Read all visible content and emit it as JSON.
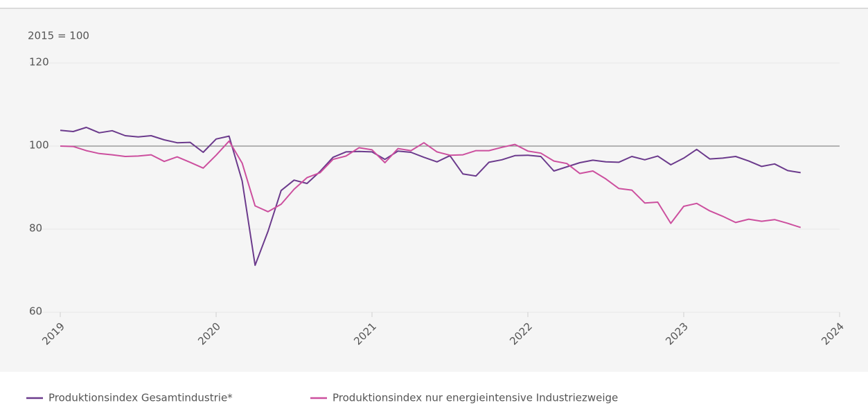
{
  "chart_data": {
    "type": "line",
    "unit_label": "2015 = 100",
    "x": [
      2019,
      2019.083,
      2019.167,
      2019.25,
      2019.333,
      2019.417,
      2019.5,
      2019.583,
      2019.667,
      2019.75,
      2019.833,
      2019.917,
      2020,
      2020.083,
      2020.167,
      2020.25,
      2020.333,
      2020.417,
      2020.5,
      2020.583,
      2020.667,
      2020.75,
      2020.833,
      2020.917,
      2021,
      2021.083,
      2021.167,
      2021.25,
      2021.333,
      2021.417,
      2021.5,
      2021.583,
      2021.667,
      2021.75,
      2021.833,
      2021.917,
      2022,
      2022.083,
      2022.167,
      2022.25,
      2022.333,
      2022.417,
      2022.5,
      2022.583,
      2022.667,
      2022.75,
      2022.833,
      2022.917,
      2023,
      2023.083,
      2023.167,
      2023.25,
      2023.333,
      2023.417,
      2023.5,
      2023.583,
      2023.667,
      2023.75
    ],
    "series": [
      {
        "name": "Produktionsindex Gesamtindustrie*",
        "color": "#6b3a8c",
        "values": [
          103.8,
          103.5,
          104.5,
          103.2,
          103.7,
          102.5,
          102.2,
          102.5,
          101.5,
          100.8,
          100.9,
          98.5,
          101.7,
          102.4,
          91.6,
          71.3,
          79.5,
          89.3,
          91.8,
          91.0,
          93.9,
          97.3,
          98.6,
          98.7,
          98.6,
          96.8,
          98.8,
          98.5,
          97.3,
          96.2,
          97.7,
          93.3,
          92.8,
          96.1,
          96.7,
          97.7,
          97.8,
          97.5,
          94.0,
          95.0,
          96.0,
          96.6,
          96.2,
          96.1,
          97.5,
          96.7,
          97.6,
          95.5,
          97.1,
          99.2,
          96.9,
          97.1,
          97.5,
          96.4,
          95.1,
          95.7,
          94.1,
          93.6
        ]
      },
      {
        "name": "Produktionsindex nur energieintensive Industriezweige",
        "color": "#cc4f9e",
        "values": [
          100.0,
          99.9,
          98.9,
          98.2,
          97.9,
          97.5,
          97.6,
          97.9,
          96.3,
          97.4,
          96.1,
          94.7,
          97.8,
          101.2,
          95.9,
          85.6,
          84.2,
          86.0,
          89.6,
          92.4,
          93.6,
          96.8,
          97.6,
          99.6,
          99.1,
          96.0,
          99.4,
          98.9,
          100.8,
          98.6,
          97.8,
          97.9,
          98.9,
          98.9,
          99.7,
          100.4,
          98.8,
          98.3,
          96.4,
          95.8,
          93.4,
          94.0,
          92.1,
          89.8,
          89.4,
          86.3,
          86.5,
          81.4,
          85.5,
          86.2,
          84.4,
          83.1,
          81.6,
          82.4,
          81.9,
          82.3,
          81.4,
          80.4
        ]
      }
    ],
    "xlim": [
      2019,
      2024
    ],
    "xticks": [
      2019,
      2020,
      2021,
      2022,
      2023,
      2024
    ],
    "ylim": [
      60,
      120
    ],
    "yticks": [
      60,
      80,
      100,
      120
    ],
    "reference_line": 100,
    "grid": true
  }
}
